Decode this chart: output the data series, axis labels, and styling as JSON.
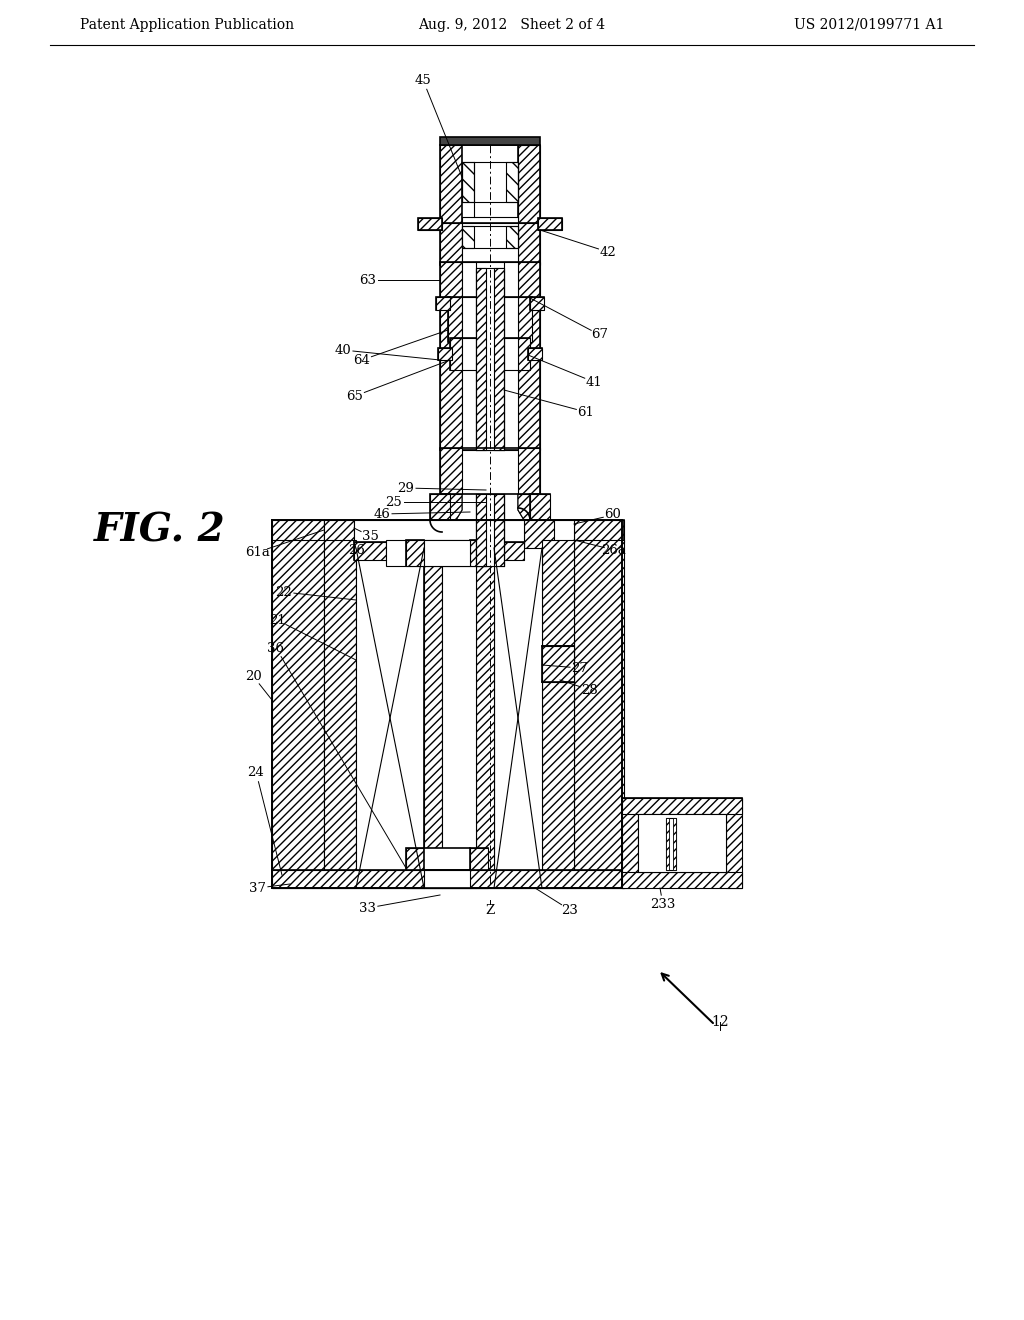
{
  "bg_color": "#ffffff",
  "header_left": "Patent Application Publication",
  "header_center": "Aug. 9, 2012   Sheet 2 of 4",
  "header_right": "US 2012/0199771 A1",
  "fig_label": "FIG. 2"
}
